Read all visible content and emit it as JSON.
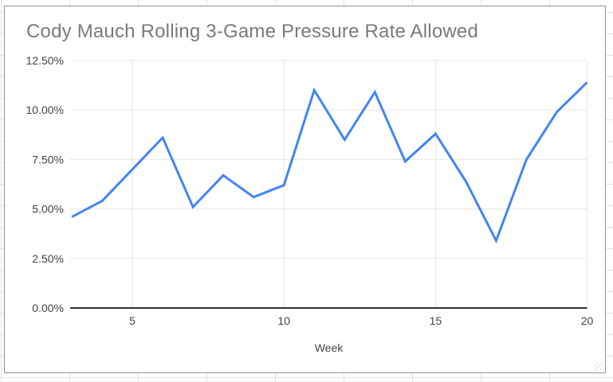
{
  "chart_data": {
    "type": "line",
    "title": "Cody Mauch Rolling 3-Game Pressure Rate Allowed",
    "xlabel": "Week",
    "ylabel": "",
    "x": [
      3,
      4,
      5,
      6,
      7,
      8,
      9,
      10,
      11,
      12,
      13,
      14,
      15,
      16,
      17,
      18,
      19,
      20
    ],
    "values": [
      4.6,
      5.4,
      7.0,
      8.6,
      5.1,
      6.7,
      5.6,
      6.2,
      11.0,
      8.5,
      10.9,
      7.4,
      8.8,
      6.4,
      3.4,
      7.5,
      9.9,
      11.4
    ],
    "xlim": [
      3,
      20
    ],
    "ylim": [
      0,
      12.5
    ],
    "grid": true,
    "legend": "none",
    "x_ticks": [
      {
        "value": 5,
        "label": "5"
      },
      {
        "value": 10,
        "label": "10"
      },
      {
        "value": 15,
        "label": "15"
      },
      {
        "value": 20,
        "label": "20"
      }
    ],
    "y_ticks": [
      {
        "value": 0,
        "label": "0.00%"
      },
      {
        "value": 2.5,
        "label": "2.50%"
      },
      {
        "value": 5,
        "label": "5.00%"
      },
      {
        "value": 7.5,
        "label": "7.50%"
      },
      {
        "value": 10,
        "label": "10.00%"
      },
      {
        "value": 12.5,
        "label": "12.50%"
      }
    ]
  },
  "colors": {
    "line": "#4285f4",
    "gridline": "#e6e6e6",
    "axis_baseline": "#333333",
    "tick_label": "#444444",
    "axis_title": "#444444",
    "chart_title": "#7a7a7a",
    "chart_border": "#949494",
    "sheet_gridline": "#e2e2e2"
  }
}
